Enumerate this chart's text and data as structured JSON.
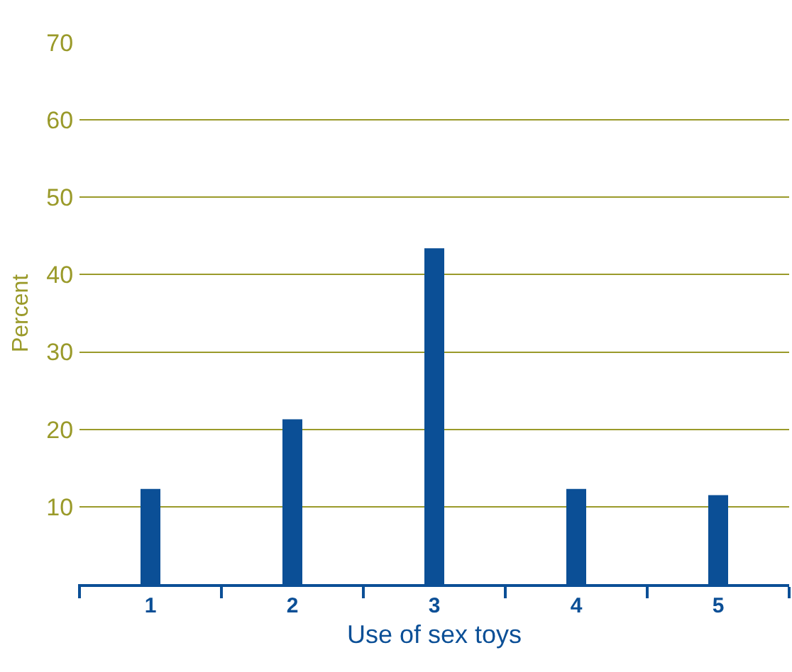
{
  "chart_data": {
    "type": "bar",
    "categories": [
      "1",
      "2",
      "3",
      "4",
      "5"
    ],
    "values": [
      12.3,
      21.3,
      43.4,
      12.3,
      11.5
    ],
    "color": "#0b4f96",
    "xlabel": "Use of sex toys",
    "ylabel": "Percent",
    "ylim": [
      0,
      70
    ],
    "yticks": [
      10,
      20,
      30,
      40,
      50,
      60,
      70
    ],
    "grid": "y"
  }
}
